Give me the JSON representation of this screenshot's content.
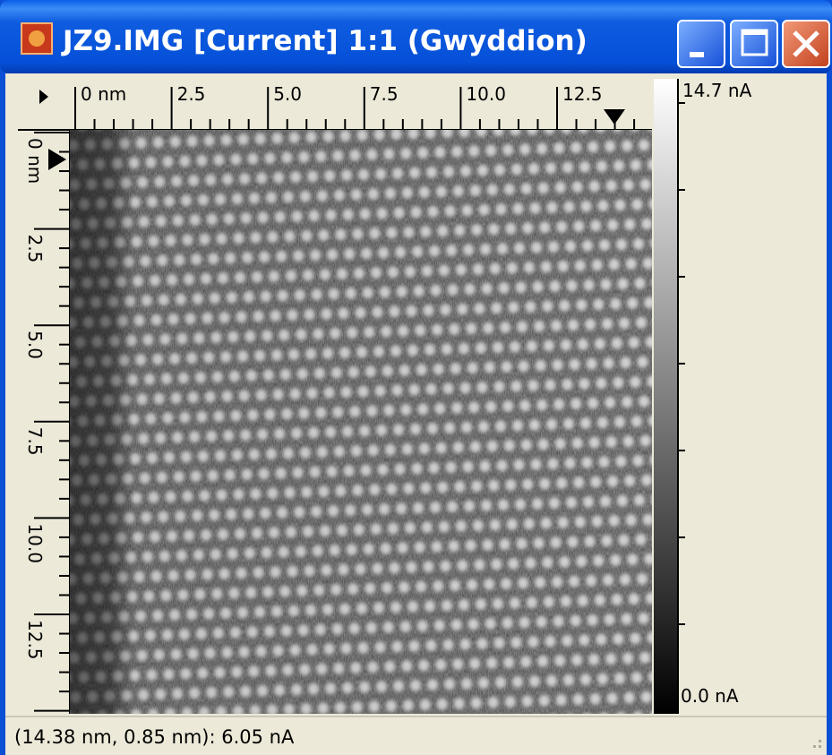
{
  "window": {
    "title": "JZ9.IMG [Current] 1:1 (Gwyddion)"
  },
  "ruler_x": {
    "labels": [
      "0 nm",
      "2.5",
      "5.0",
      "7.5",
      "10.0",
      "12.5"
    ]
  },
  "ruler_y": {
    "labels": [
      "0 nm",
      "2.5",
      "5.0",
      "7.5",
      "10.0",
      "12.5"
    ]
  },
  "color_scale": {
    "max_label": "14.7 nA",
    "min_label": "0.0 nA"
  },
  "status_bar": {
    "text": "(14.38 nm, 0.85 nm): 6.05 nA"
  }
}
